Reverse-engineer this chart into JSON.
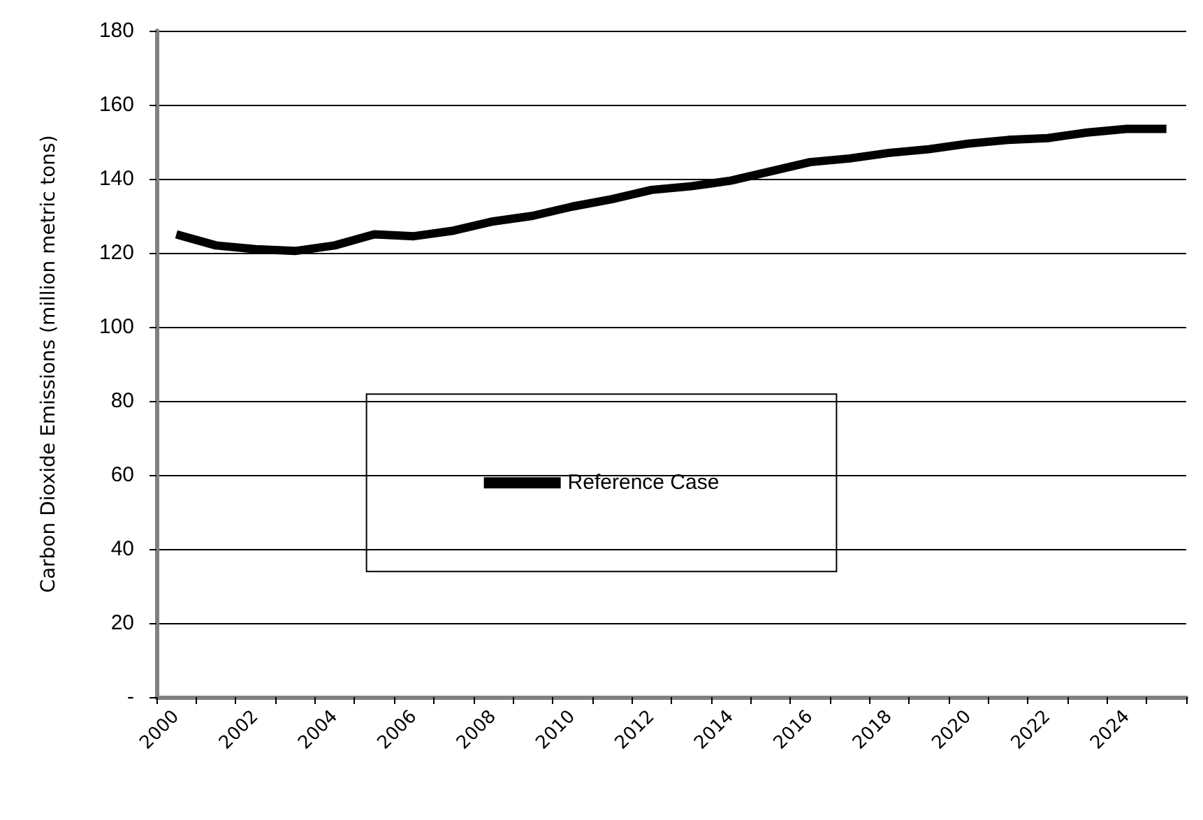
{
  "chart_data": {
    "type": "line",
    "ylabel": "Carbon Dioxide Emissions (million metric tons)",
    "categories": [
      "2000",
      null,
      "2002",
      null,
      "2004",
      null,
      "2006",
      null,
      "2008",
      null,
      "2010",
      null,
      "2012",
      null,
      "2014",
      null,
      "2016",
      null,
      "2018",
      null,
      "2020",
      null,
      "2022",
      null,
      "2024",
      null
    ],
    "series": [
      {
        "name": "Reference Case",
        "color": "#000000",
        "values": [
          125,
          122,
          121,
          120.5,
          122,
          125,
          124.5,
          126,
          128.5,
          130,
          132.5,
          134.5,
          137,
          138,
          139.5,
          142,
          144.5,
          145.5,
          147,
          148,
          149.5,
          150.5,
          151,
          152.5,
          153.5,
          153.5
        ]
      }
    ],
    "ylim": [
      0,
      180
    ],
    "yticks": [
      {
        "value": 0,
        "label": "-"
      },
      20,
      40,
      60,
      80,
      100,
      120,
      140,
      160,
      180
    ],
    "grid": "y",
    "legend": "center",
    "marker": "none",
    "line_style": "solid"
  }
}
